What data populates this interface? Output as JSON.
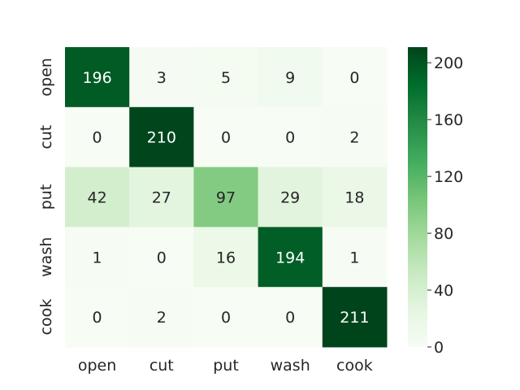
{
  "chart_data": {
    "type": "heatmap",
    "title": "",
    "xlabel": "",
    "ylabel": "",
    "x_categories": [
      "open",
      "cut",
      "put",
      "wash",
      "cook"
    ],
    "y_categories": [
      "open",
      "cut",
      "put",
      "wash",
      "cook"
    ],
    "values": [
      [
        196,
        3,
        5,
        9,
        0
      ],
      [
        0,
        210,
        0,
        0,
        2
      ],
      [
        42,
        27,
        97,
        29,
        18
      ],
      [
        1,
        0,
        16,
        194,
        1
      ],
      [
        0,
        2,
        0,
        0,
        211
      ]
    ],
    "colorbar": {
      "colormap": "Greens",
      "min": 0,
      "max": 211,
      "ticks": [
        0,
        40,
        80,
        120,
        160,
        200
      ]
    }
  }
}
